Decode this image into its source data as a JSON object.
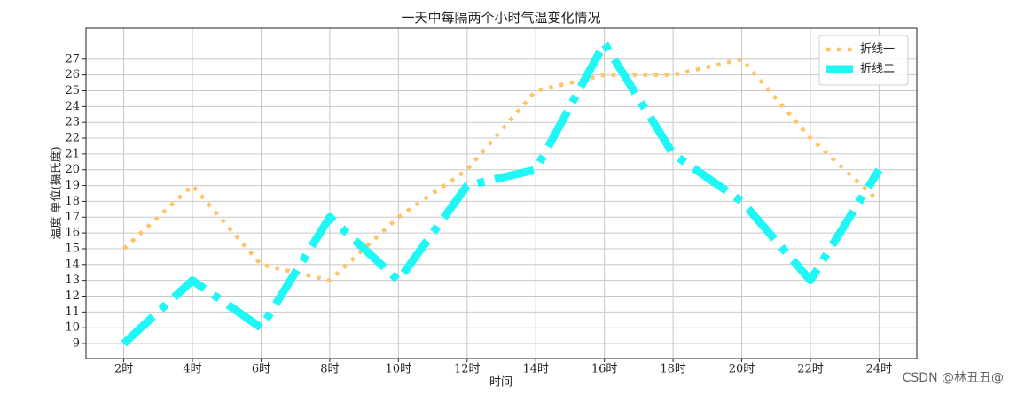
{
  "chart_data": {
    "type": "line",
    "title": "一天中每隔两个小时气温变化情况",
    "xlabel": "时间",
    "ylabel": "温度 单位(摄氏度)",
    "categories": [
      "2时",
      "4时",
      "6时",
      "8时",
      "10时",
      "12时",
      "14时",
      "16时",
      "18时",
      "20时",
      "22时",
      "24时"
    ],
    "series": [
      {
        "name": "折线一",
        "color": "#ffc46a",
        "values": [
          15,
          19,
          14,
          13,
          17,
          20,
          25,
          26,
          26,
          27,
          22,
          18
        ]
      },
      {
        "name": "折线二",
        "color": "#1ff6f6",
        "values": [
          9,
          13,
          10,
          17,
          13,
          19,
          20,
          28,
          21,
          18,
          13,
          20
        ]
      }
    ],
    "ylim": [
      8.05,
      28.95
    ],
    "yticks": [
      9,
      10,
      11,
      12,
      13,
      14,
      15,
      16,
      17,
      18,
      19,
      20,
      21,
      22,
      23,
      24,
      25,
      26,
      27
    ],
    "grid": true,
    "legend": "upper right",
    "watermark": "CSDN @林丑丑@"
  }
}
